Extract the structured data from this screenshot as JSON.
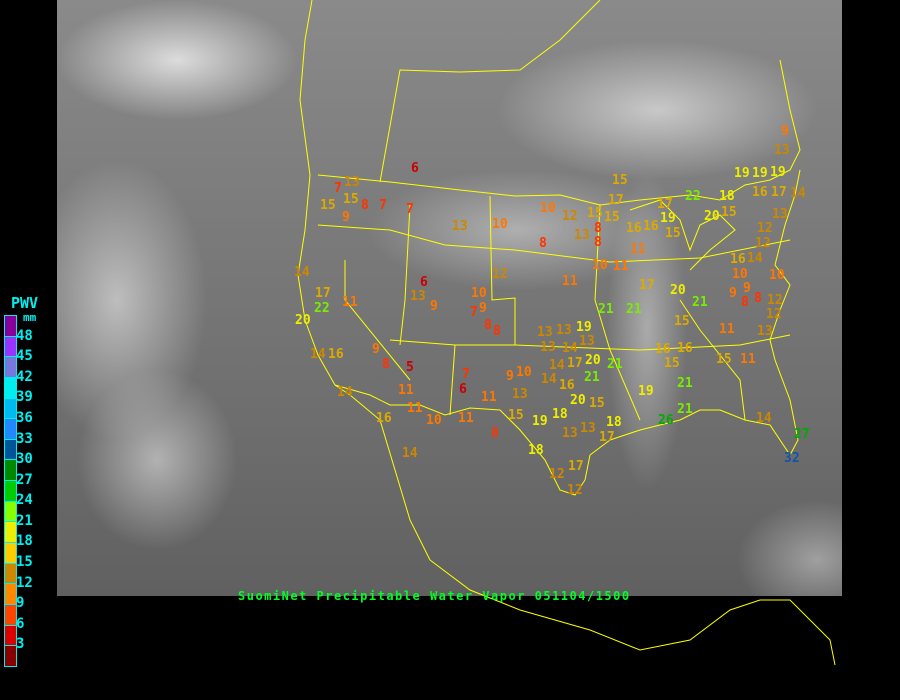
{
  "title": "SuomiNet Precipitable Water Vapor 051104/1500",
  "legend": {
    "title": "PWV",
    "unit": "mm",
    "ticks": [
      "48",
      "45",
      "42",
      "39",
      "36",
      "33",
      "30",
      "27",
      "24",
      "21",
      "18",
      "15",
      "12",
      "9",
      "6",
      "3"
    ],
    "colors": [
      "#880099",
      "#9933ff",
      "#7777dd",
      "#00eeee",
      "#00bbee",
      "#2288ff",
      "#005599",
      "#008800",
      "#00cc00",
      "#88ff00",
      "#eeee00",
      "#ffcc00",
      "#cc8800",
      "#ff8800",
      "#ff4400",
      "#dd0000",
      "#880000"
    ]
  },
  "border_color": "#ffff00",
  "station_values": [
    6,
    7,
    13,
    15,
    15,
    8,
    9,
    7,
    7,
    13,
    10,
    10,
    12,
    15,
    8,
    13,
    8,
    14,
    17,
    22,
    11,
    20,
    6,
    13,
    9,
    10,
    9,
    7,
    8,
    8,
    12,
    11,
    10,
    11,
    14,
    16,
    9,
    8,
    5,
    11,
    7,
    6,
    11,
    9,
    10,
    13,
    11,
    10,
    11,
    8,
    16,
    14,
    14,
    15,
    19,
    18,
    13,
    13,
    17,
    18,
    18,
    12,
    17,
    12,
    13,
    13,
    19,
    14,
    13,
    13,
    17,
    14,
    14,
    20,
    21,
    16,
    20,
    15,
    15,
    17,
    15,
    8,
    16,
    17,
    19,
    15,
    22,
    18,
    19,
    19,
    19,
    9,
    13,
    16,
    17,
    14,
    13,
    20,
    15,
    12,
    12,
    14,
    16,
    10,
    10,
    9,
    9,
    8,
    8,
    12,
    12,
    13,
    11,
    15,
    11,
    21,
    20,
    17,
    15,
    16,
    16,
    15,
    21,
    19,
    26,
    21,
    14,
    27,
    32,
    11,
    16,
    21,
    21,
    21
  ]
}
